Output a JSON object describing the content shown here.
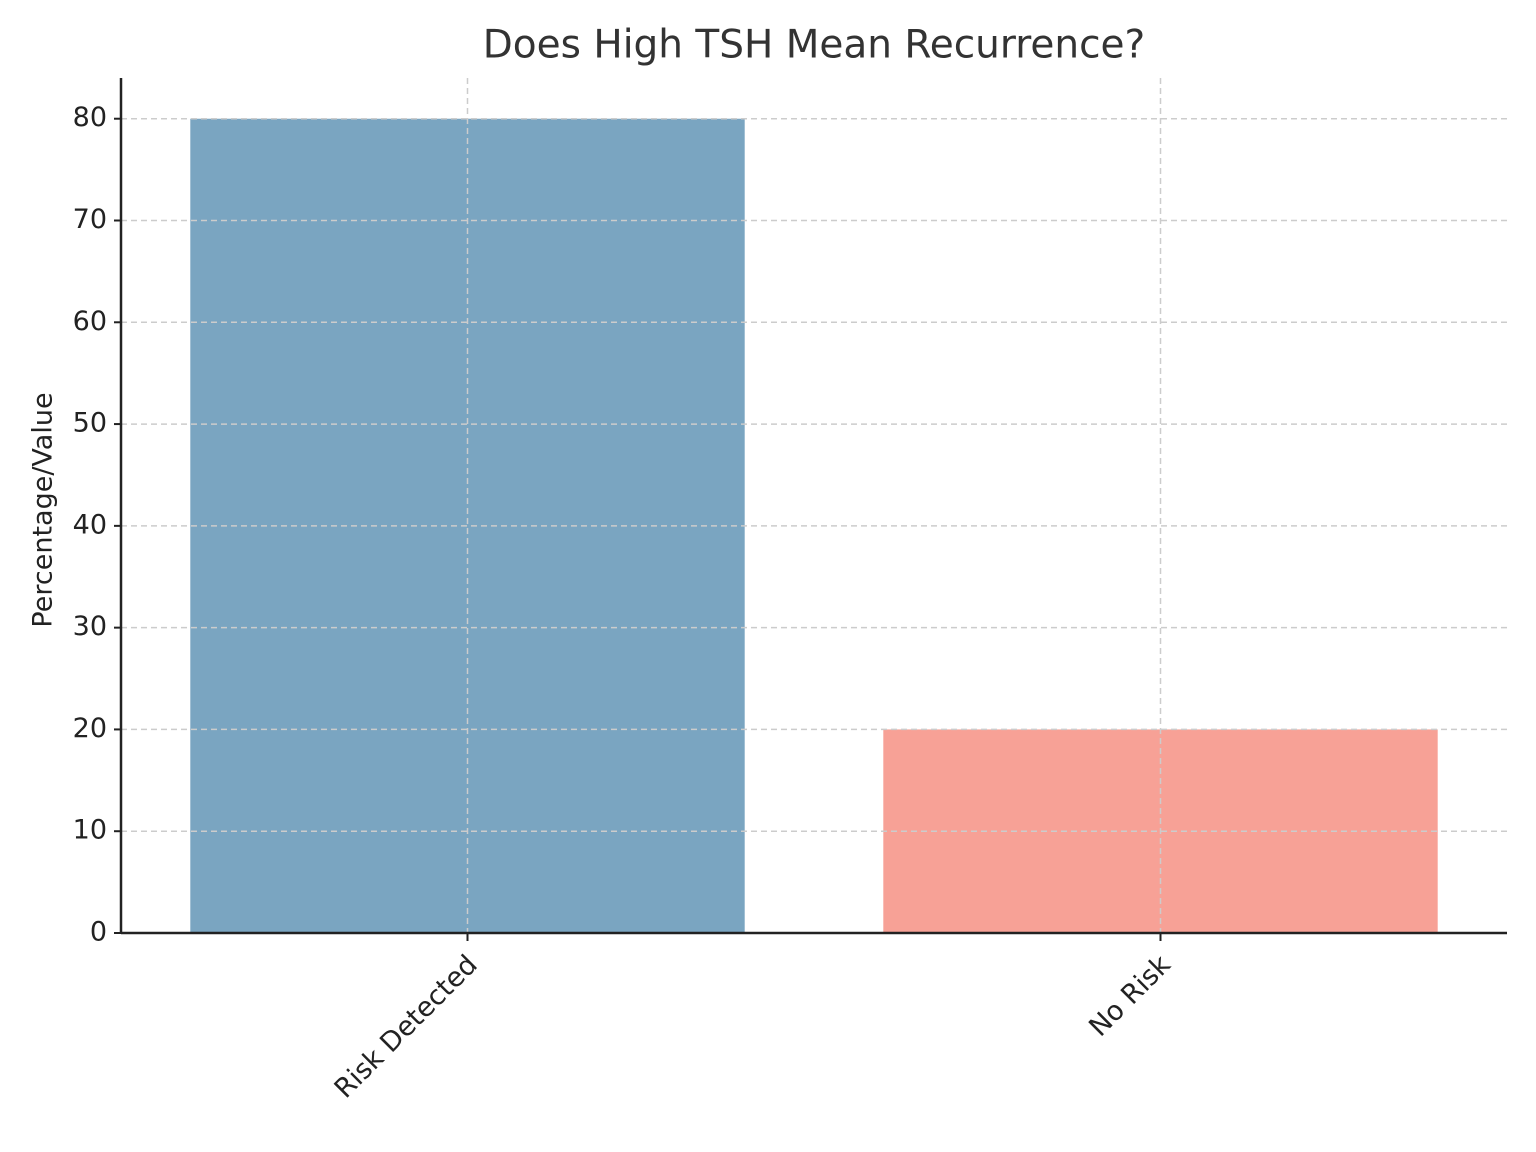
{
  "chart_data": {
    "type": "bar",
    "title": "Does High TSH Mean Recurrence?",
    "y_label": "Percentage/Value",
    "categories": [
      "Risk Detected",
      "No Risk"
    ],
    "values": [
      80,
      20
    ],
    "colors": [
      "#7aa5c1",
      "#f7a196"
    ],
    "ylim": [
      0,
      84
    ],
    "yticks": [
      0,
      10,
      20,
      30,
      40,
      50,
      60,
      70,
      80
    ],
    "grid": true
  }
}
